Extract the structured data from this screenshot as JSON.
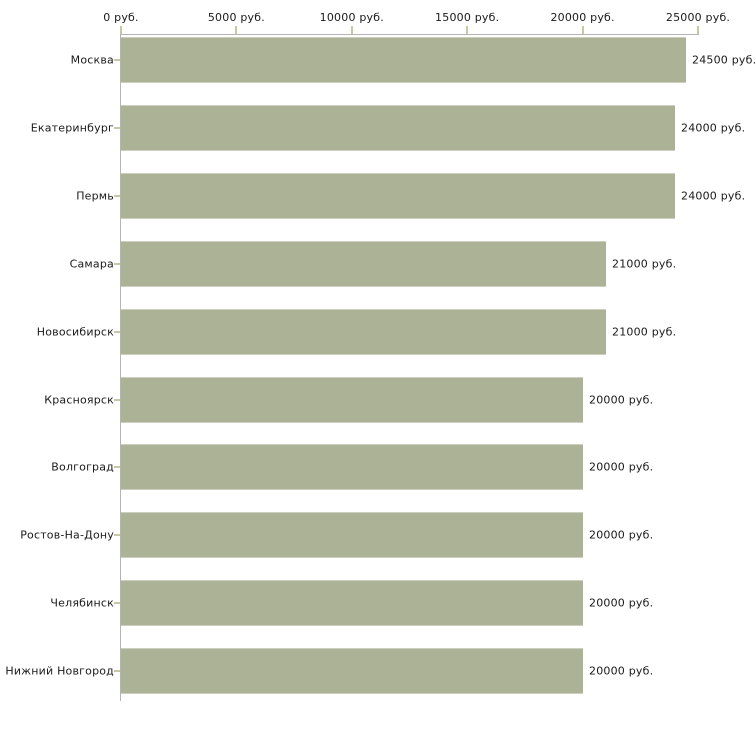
{
  "chart_data": {
    "type": "bar",
    "orientation": "horizontal",
    "categories": [
      "Москва",
      "Екатеринбург",
      "Пермь",
      "Самара",
      "Новосибирск",
      "Красноярск",
      "Волгоград",
      "Ростов-На-Дону",
      "Челябинск",
      "Нижний Новгород"
    ],
    "values": [
      24500,
      24000,
      24000,
      21000,
      21000,
      20000,
      20000,
      20000,
      20000,
      20000
    ],
    "value_labels": [
      "24500 руб.",
      "24000 руб.",
      "24000 руб.",
      "21000 руб.",
      "21000 руб.",
      "20000 руб.",
      "20000 руб.",
      "20000 руб.",
      "20000 руб.",
      "20000 руб."
    ],
    "x_ticks": [
      0,
      5000,
      10000,
      15000,
      20000,
      25000
    ],
    "x_tick_labels": [
      "0 руб.",
      "5000 руб.",
      "10000 руб.",
      "15000 руб.",
      "20000 руб.",
      "25000 руб."
    ],
    "xlim": [
      0,
      25000
    ],
    "grid": false,
    "legend": false,
    "title": "",
    "xlabel": "",
    "ylabel": "",
    "colors": {
      "bar": "#acb296",
      "bar_edge": "#cdd0bf",
      "axis": "#b4b4b4",
      "tick": "#c8c8a5",
      "text": "#1a1a1a",
      "background": "#ffffff"
    }
  }
}
